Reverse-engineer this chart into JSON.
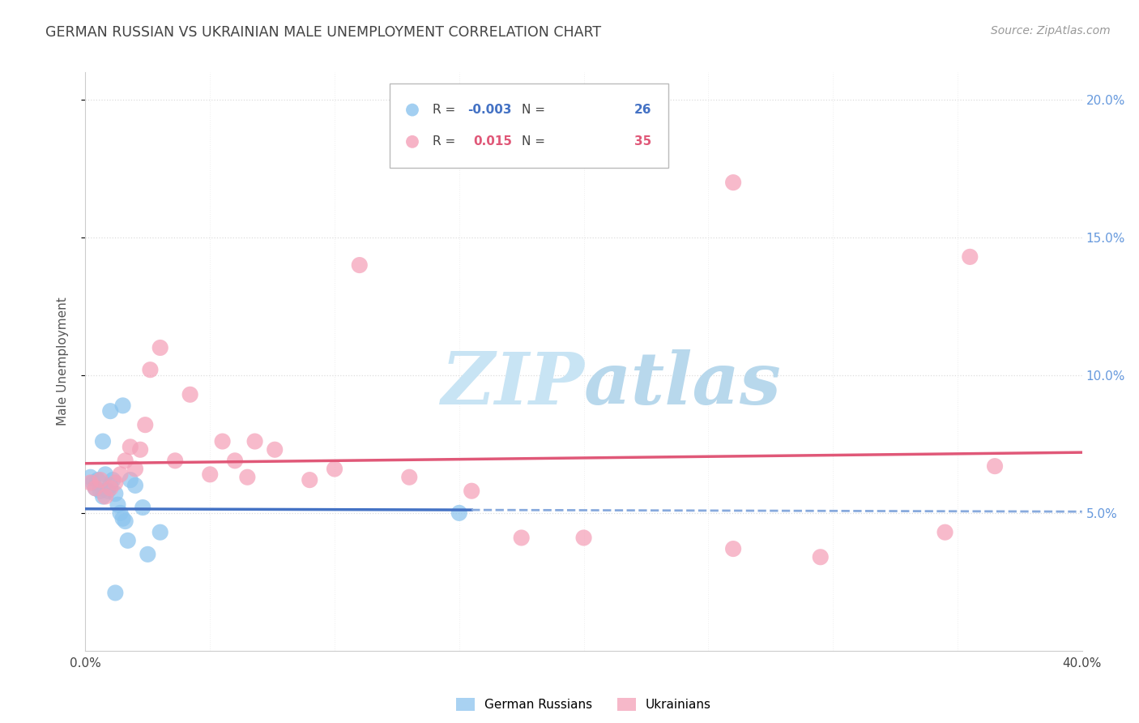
{
  "title": "GERMAN RUSSIAN VS UKRAINIAN MALE UNEMPLOYMENT CORRELATION CHART",
  "source": "Source: ZipAtlas.com",
  "ylabel": "Male Unemployment",
  "xlim": [
    0.0,
    0.4
  ],
  "ylim": [
    0.0,
    0.21
  ],
  "yticks": [
    0.05,
    0.1,
    0.15,
    0.2
  ],
  "ytick_labels": [
    "5.0%",
    "10.0%",
    "15.0%",
    "20.0%"
  ],
  "xticks": [
    0.0,
    0.05,
    0.1,
    0.15,
    0.2,
    0.25,
    0.3,
    0.35,
    0.4
  ],
  "german_russian_color": "#8CC4EE",
  "ukrainian_color": "#F4A0B8",
  "trend_blue_solid_color": "#4472C4",
  "trend_blue_dash_color": "#88AADD",
  "trend_pink_color": "#E05878",
  "right_tick_color": "#6699DD",
  "watermark_color": "#D8EEF8",
  "title_color": "#444444",
  "source_color": "#999999",
  "legend_text_color": "#444444",
  "legend_blue_val_color": "#4472C4",
  "legend_pink_val_color": "#E05878",
  "blue_x": [
    0.002,
    0.003,
    0.004,
    0.005,
    0.006,
    0.007,
    0.008,
    0.009,
    0.01,
    0.011,
    0.012,
    0.013,
    0.014,
    0.015,
    0.016,
    0.018,
    0.02,
    0.023,
    0.007,
    0.01,
    0.015,
    0.15,
    0.017,
    0.025,
    0.03,
    0.012
  ],
  "blue_y": [
    0.063,
    0.061,
    0.059,
    0.062,
    0.058,
    0.056,
    0.064,
    0.058,
    0.06,
    0.062,
    0.057,
    0.053,
    0.05,
    0.048,
    0.047,
    0.062,
    0.06,
    0.052,
    0.076,
    0.087,
    0.089,
    0.05,
    0.04,
    0.035,
    0.043,
    0.021
  ],
  "pink_x": [
    0.002,
    0.004,
    0.006,
    0.008,
    0.01,
    0.012,
    0.014,
    0.016,
    0.018,
    0.02,
    0.022,
    0.024,
    0.026,
    0.03,
    0.036,
    0.042,
    0.05,
    0.055,
    0.06,
    0.065,
    0.068,
    0.076,
    0.09,
    0.1,
    0.11,
    0.13,
    0.155,
    0.175,
    0.2,
    0.26,
    0.295,
    0.345,
    0.365,
    0.355,
    0.26
  ],
  "pink_y": [
    0.061,
    0.059,
    0.062,
    0.056,
    0.059,
    0.061,
    0.064,
    0.069,
    0.074,
    0.066,
    0.073,
    0.082,
    0.102,
    0.11,
    0.069,
    0.093,
    0.064,
    0.076,
    0.069,
    0.063,
    0.076,
    0.073,
    0.062,
    0.066,
    0.14,
    0.063,
    0.058,
    0.041,
    0.041,
    0.037,
    0.034,
    0.043,
    0.067,
    0.143,
    0.17
  ],
  "blue_trend_y0": 0.0515,
  "blue_trend_y1": 0.0505,
  "pink_trend_y0": 0.068,
  "pink_trend_y1": 0.072
}
